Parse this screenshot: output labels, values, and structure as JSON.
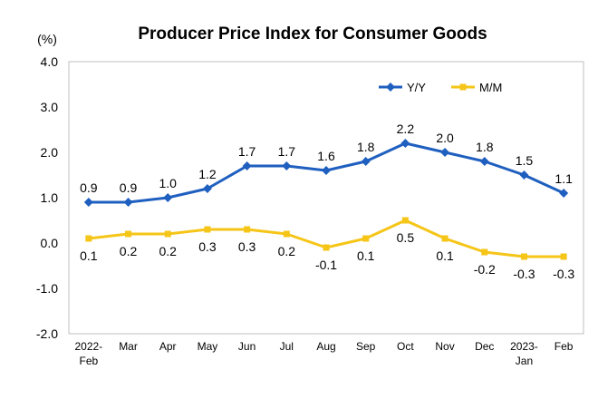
{
  "chart_data": {
    "type": "line",
    "title": "Producer Price Index for Consumer Goods",
    "unit_label": "(%)",
    "categories": [
      [
        "2022-",
        "Feb"
      ],
      [
        "Mar"
      ],
      [
        "Apr"
      ],
      [
        "May"
      ],
      [
        "Jun"
      ],
      [
        "Jul"
      ],
      [
        "Aug"
      ],
      [
        "Sep"
      ],
      [
        "Oct"
      ],
      [
        "Nov"
      ],
      [
        "Dec"
      ],
      [
        "2023-",
        "Jan"
      ],
      [
        "Feb"
      ]
    ],
    "ylim": [
      -2.0,
      4.0
    ],
    "yticks": [
      "4.0",
      "3.0",
      "2.0",
      "1.0",
      "0.0",
      "-1.0",
      "-2.0"
    ],
    "ytick_values": [
      4,
      3,
      2,
      1,
      0,
      -1,
      -2
    ],
    "grid": false,
    "legend_position": "top-right",
    "series": [
      {
        "name": "Y/Y",
        "color": "#1f5fbf",
        "marker": "diamond",
        "label_position": "above",
        "values": [
          0.9,
          0.9,
          1.0,
          1.2,
          1.7,
          1.7,
          1.6,
          1.8,
          2.2,
          2.0,
          1.8,
          1.5,
          1.1
        ],
        "labels": [
          "0.9",
          "0.9",
          "1.0",
          "1.2",
          "1.7",
          "1.7",
          "1.6",
          "1.8",
          "2.2",
          "2.0",
          "1.8",
          "1.5",
          "1.1"
        ]
      },
      {
        "name": "M/M",
        "color": "#f5c518",
        "marker": "square",
        "label_position": "below",
        "values": [
          0.1,
          0.2,
          0.2,
          0.3,
          0.3,
          0.2,
          -0.1,
          0.1,
          0.5,
          0.1,
          -0.2,
          -0.3,
          -0.3
        ],
        "labels": [
          "0.1",
          "0.2",
          "0.2",
          "0.3",
          "0.3",
          "0.2",
          "-0.1",
          "0.1",
          "0.5",
          "0.1",
          "-0.2",
          "-0.3",
          "-0.3"
        ]
      }
    ]
  }
}
